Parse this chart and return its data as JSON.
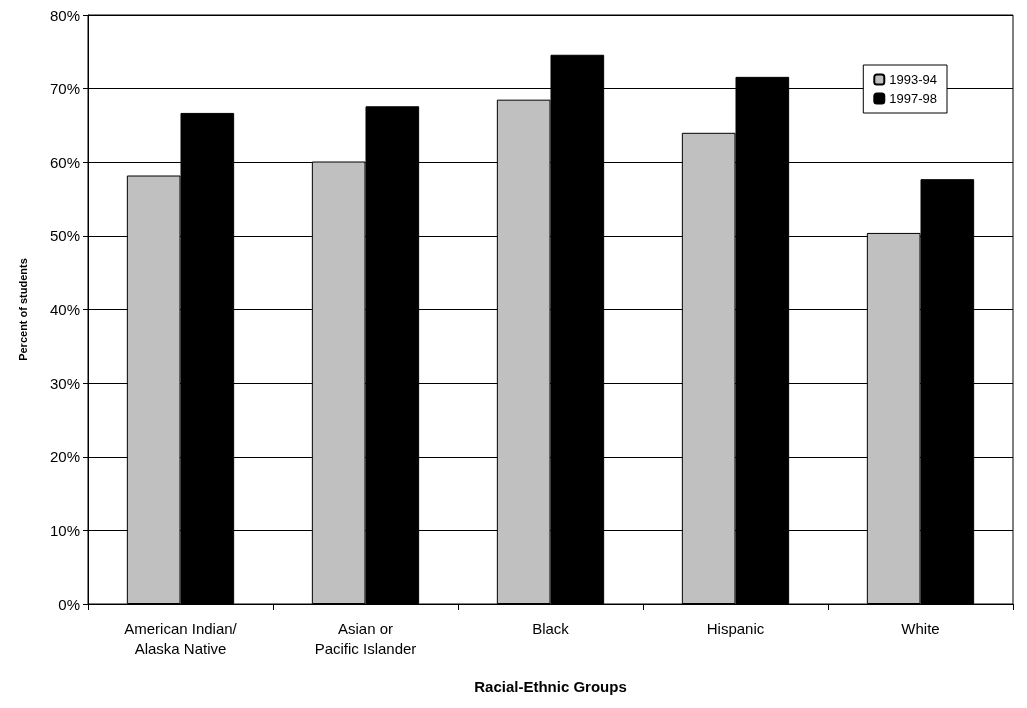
{
  "chart_data": {
    "type": "bar",
    "xlabel": "Racial-Ethnic Groups",
    "ylabel": "Percent of students",
    "categories": [
      "American Indian/\nAlaska Native",
      "Asian or\nPacific Islander",
      "Black",
      "Hispanic",
      "White"
    ],
    "series": [
      {
        "name": "1993-94",
        "color": "#c0c0c0",
        "values": [
          58.2,
          60.1,
          68.5,
          64.0,
          50.4
        ]
      },
      {
        "name": "1997-98",
        "color": "#000000",
        "values": [
          66.7,
          67.6,
          74.6,
          71.6,
          57.7
        ]
      }
    ],
    "ylim": [
      0,
      80
    ],
    "yticks": [
      {
        "value": 0,
        "label": "0%"
      },
      {
        "value": 10,
        "label": "10%"
      },
      {
        "value": 20,
        "label": "20%"
      },
      {
        "value": 30,
        "label": "30%"
      },
      {
        "value": 40,
        "label": "40%"
      },
      {
        "value": 50,
        "label": "50%"
      },
      {
        "value": 60,
        "label": "60%"
      },
      {
        "value": 70,
        "label": "70%"
      },
      {
        "value": 80,
        "label": "80%"
      }
    ],
    "grid": "y",
    "legend": "top right"
  }
}
